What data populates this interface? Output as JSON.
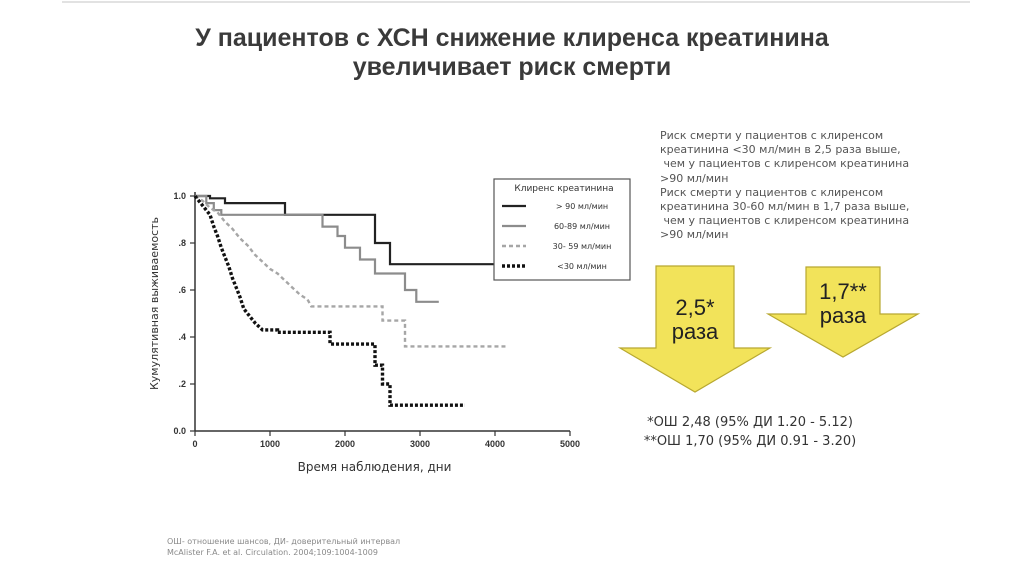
{
  "title": {
    "line1": "У пациентов с ХСН снижение клиренса креатинина",
    "line2": "увеличивает риск смерти"
  },
  "chart_data": {
    "type": "line",
    "xlabel": "Время наблюдения, дни",
    "ylabel": "Кумулятивная выживаемость",
    "xlim": [
      0,
      5000
    ],
    "ylim": [
      0,
      1.0
    ],
    "x_ticks": [
      0,
      1000,
      2000,
      3000,
      4000,
      5000
    ],
    "y_ticks": [
      {
        "value": 0.0,
        "label": "0.0"
      },
      {
        "value": 0.2,
        "label": ".2"
      },
      {
        "value": 0.4,
        "label": ".4"
      },
      {
        "value": 0.6,
        "label": ".6"
      },
      {
        "value": 0.8,
        "label": ".8"
      },
      {
        "value": 1.0,
        "label": "1.0"
      }
    ],
    "grid": false,
    "legend": {
      "title": "Клиренс креатинина",
      "position": "top-right"
    },
    "series": [
      {
        "name": "> 90 мл/мин",
        "style": "solid",
        "color": "#222222",
        "points": [
          [
            0,
            1.0
          ],
          [
            200,
            1.0
          ],
          [
            200,
            0.99
          ],
          [
            400,
            0.99
          ],
          [
            400,
            0.97
          ],
          [
            1200,
            0.97
          ],
          [
            1200,
            0.92
          ],
          [
            2400,
            0.92
          ],
          [
            2400,
            0.8
          ],
          [
            2600,
            0.8
          ],
          [
            2600,
            0.71
          ],
          [
            4000,
            0.71
          ]
        ]
      },
      {
        "name": "60-89 мл/мин",
        "style": "solid",
        "color": "#8c8c8c",
        "points": [
          [
            0,
            1.0
          ],
          [
            150,
            1.0
          ],
          [
            150,
            0.97
          ],
          [
            250,
            0.97
          ],
          [
            250,
            0.94
          ],
          [
            350,
            0.94
          ],
          [
            350,
            0.92
          ],
          [
            1700,
            0.92
          ],
          [
            1700,
            0.87
          ],
          [
            1900,
            0.87
          ],
          [
            1900,
            0.83
          ],
          [
            2000,
            0.83
          ],
          [
            2000,
            0.78
          ],
          [
            2200,
            0.78
          ],
          [
            2200,
            0.73
          ],
          [
            2400,
            0.73
          ],
          [
            2400,
            0.67
          ],
          [
            2800,
            0.67
          ],
          [
            2800,
            0.6
          ],
          [
            2950,
            0.6
          ],
          [
            2950,
            0.55
          ],
          [
            3250,
            0.55
          ]
        ]
      },
      {
        "name": "30- 59 мл/мин",
        "style": "dashed",
        "color": "#a6a6a6",
        "points": [
          [
            0,
            1.0
          ],
          [
            100,
            0.98
          ],
          [
            200,
            0.95
          ],
          [
            300,
            0.93
          ],
          [
            400,
            0.89
          ],
          [
            500,
            0.86
          ],
          [
            600,
            0.82
          ],
          [
            700,
            0.79
          ],
          [
            800,
            0.75
          ],
          [
            900,
            0.72
          ],
          [
            1000,
            0.69
          ],
          [
            1100,
            0.67
          ],
          [
            1200,
            0.64
          ],
          [
            1300,
            0.61
          ],
          [
            1400,
            0.58
          ],
          [
            1500,
            0.56
          ],
          [
            1550,
            0.53
          ],
          [
            2500,
            0.53
          ],
          [
            2500,
            0.47
          ],
          [
            2800,
            0.47
          ],
          [
            2800,
            0.36
          ],
          [
            4150,
            0.36
          ]
        ]
      },
      {
        "name": "<30 мл/мин",
        "style": "dotted",
        "color": "#111111",
        "points": [
          [
            0,
            1.0
          ],
          [
            100,
            0.96
          ],
          [
            200,
            0.92
          ],
          [
            250,
            0.87
          ],
          [
            300,
            0.83
          ],
          [
            350,
            0.78
          ],
          [
            400,
            0.74
          ],
          [
            450,
            0.7
          ],
          [
            500,
            0.65
          ],
          [
            550,
            0.61
          ],
          [
            600,
            0.57
          ],
          [
            650,
            0.52
          ],
          [
            700,
            0.5
          ],
          [
            800,
            0.46
          ],
          [
            900,
            0.43
          ],
          [
            1100,
            0.43
          ],
          [
            1100,
            0.42
          ],
          [
            1800,
            0.42
          ],
          [
            1800,
            0.37
          ],
          [
            2400,
            0.37
          ],
          [
            2400,
            0.28
          ],
          [
            2500,
            0.28
          ],
          [
            2500,
            0.2
          ],
          [
            2600,
            0.2
          ],
          [
            2600,
            0.11
          ],
          [
            3600,
            0.11
          ]
        ]
      }
    ]
  },
  "description": {
    "lines": [
      "Риск смерти у пациентов с клиренсом",
      "креатинина <30 мл/мин в 2,5 раза выше,",
      " чем у пациентов с клиренсом креатинина",
      ">90 мл/мин",
      "Риск смерти у пациентов с клиренсом",
      "креатинина 30-60 мл/мин в 1,7 раза выше,",
      " чем у пациентов с клиренсом креатинина",
      ">90 мл/мин"
    ]
  },
  "arrows": [
    {
      "value": "2,5*",
      "unit": "раза",
      "color": "#f2e35a"
    },
    {
      "value": "1,7**",
      "unit": "раза",
      "color": "#f2e35a"
    }
  ],
  "notes": {
    "line1": "*ОШ 2,48 (95% ДИ 1.20 - 5.12)",
    "line2": "**ОШ 1,70 (95% ДИ 0.91 - 3.20)"
  },
  "footer": {
    "line1": "ОШ- отношение шансов, ДИ- доверительный интервал",
    "line2": "McAlister F.A. et al. Circulation. 2004;109:1004-1009"
  }
}
